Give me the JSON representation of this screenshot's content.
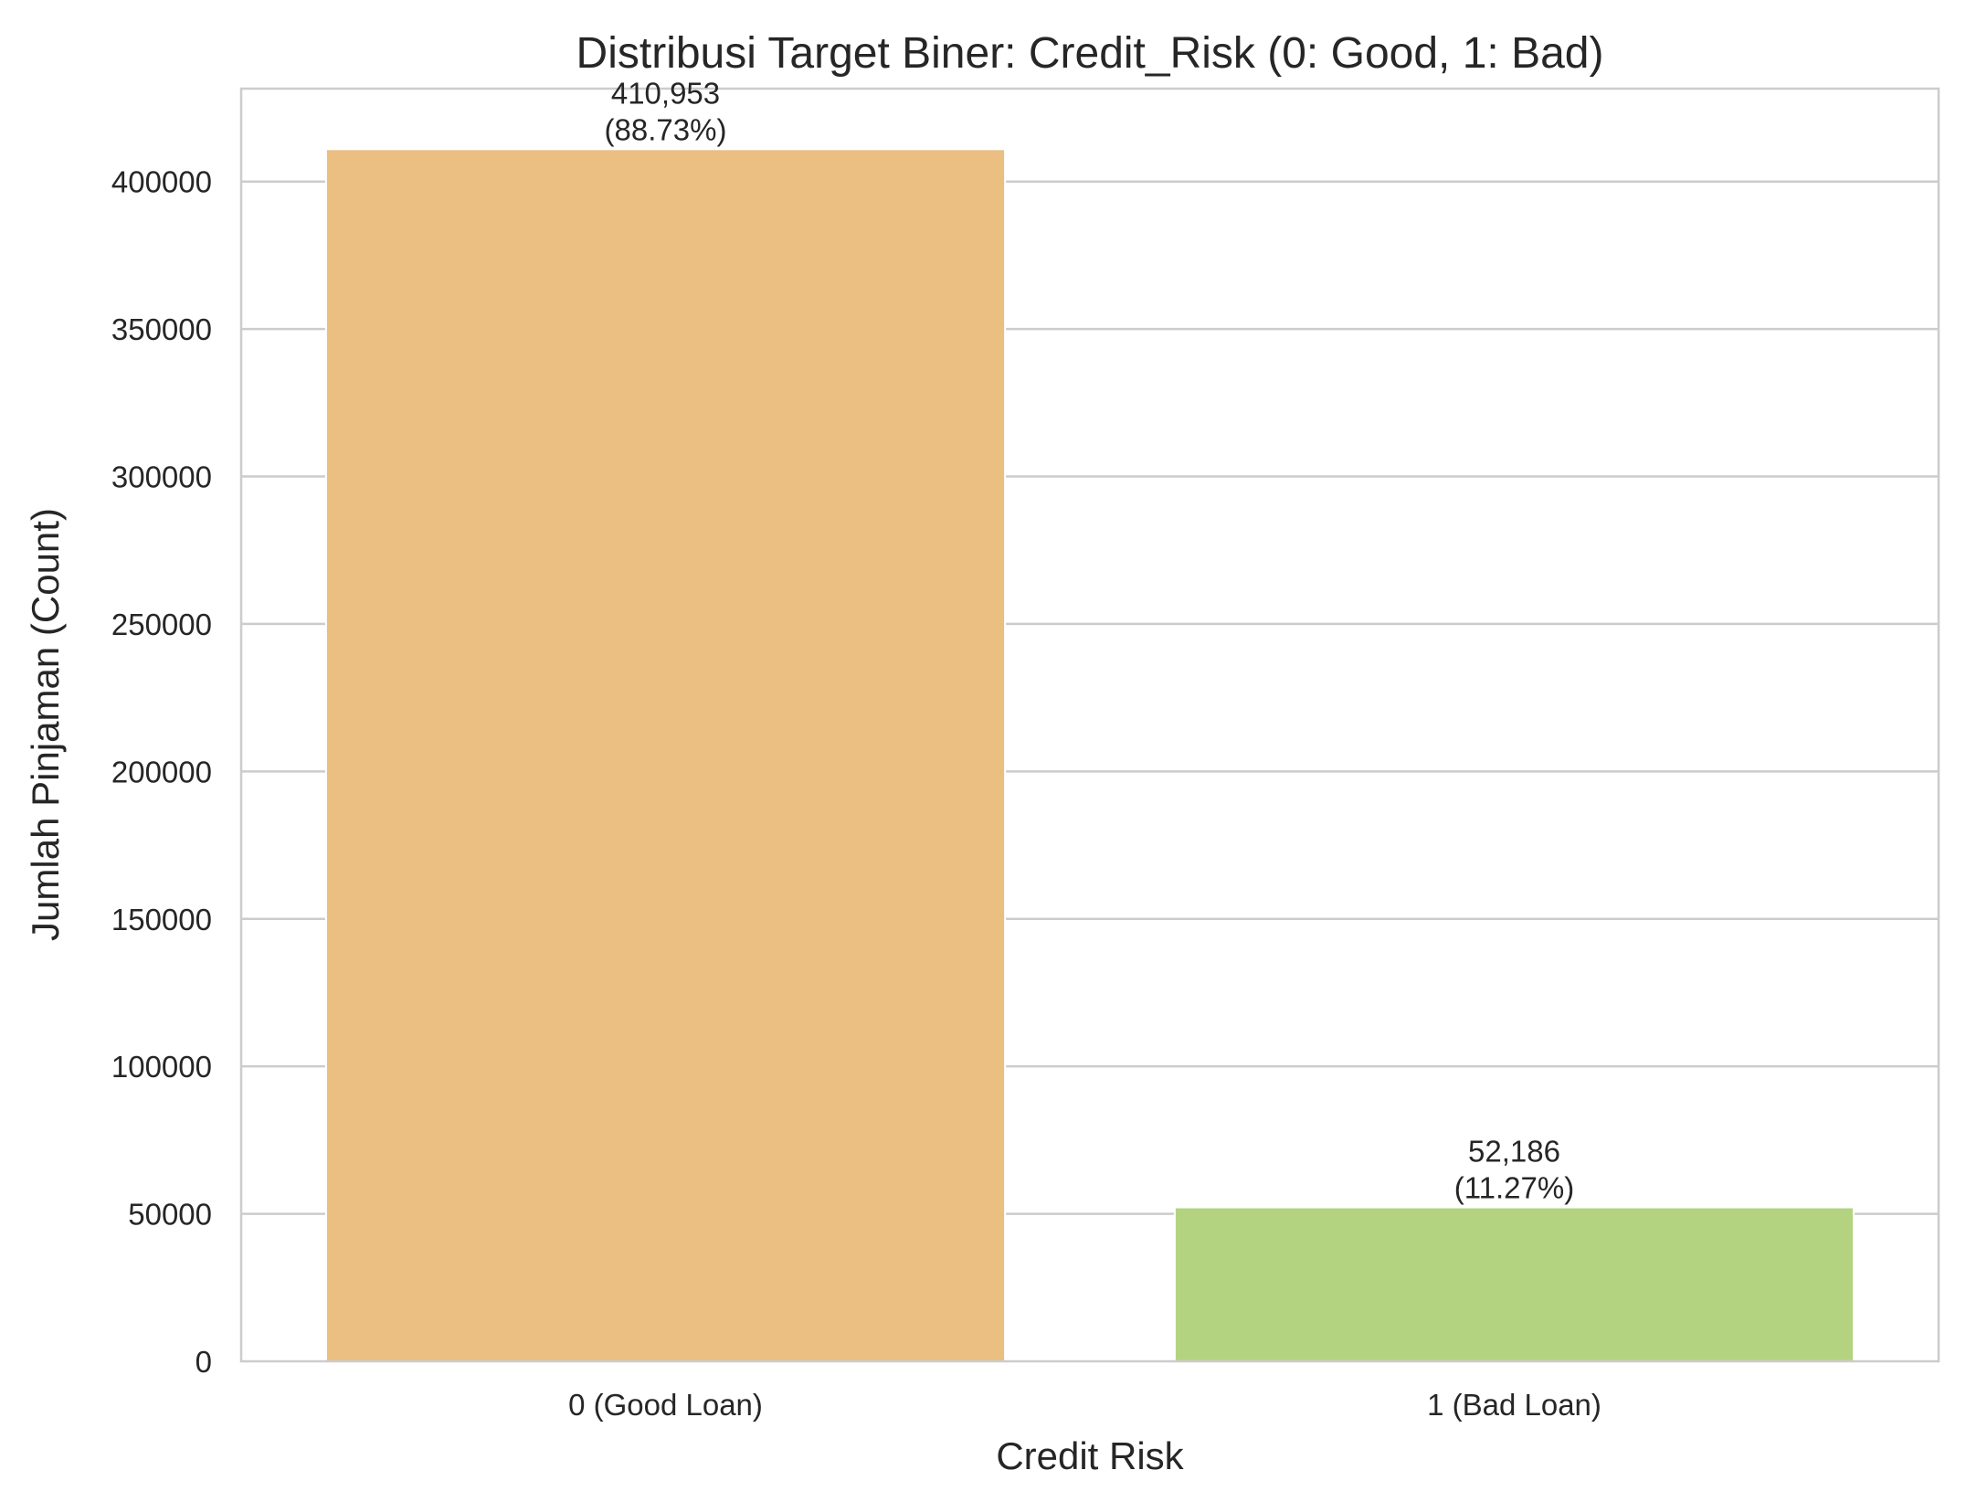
{
  "chart_data": {
    "type": "bar",
    "title": "Distribusi Target Biner: Credit_Risk (0: Good, 1: Bad)",
    "xlabel": "Credit Risk",
    "ylabel": "Jumlah Pinjaman (Count)",
    "categories": [
      "0 (Good Loan)",
      "1 (Bad Loan)"
    ],
    "values": [
      410953,
      52186
    ],
    "bar_labels": [
      {
        "count": "410,953",
        "percent": "(88.73%)"
      },
      {
        "count": "52,186",
        "percent": "(11.27%)"
      }
    ],
    "colors": [
      "#EBBE81",
      "#B3D380"
    ],
    "ylim": [
      0,
      431500
    ],
    "yticks": [
      0,
      50000,
      100000,
      150000,
      200000,
      250000,
      300000,
      350000,
      400000
    ],
    "ytick_labels": [
      "0",
      "50000",
      "100000",
      "150000",
      "200000",
      "250000",
      "300000",
      "350000",
      "400000"
    ],
    "grid": "horizontal",
    "legend": "none"
  }
}
